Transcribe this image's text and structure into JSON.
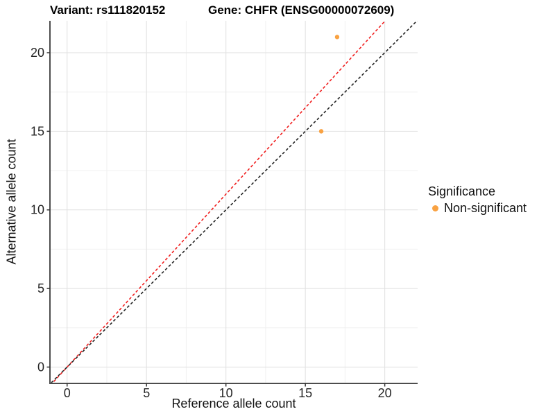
{
  "chart_data": {
    "type": "scatter",
    "titles": {
      "variant": "Variant: rs111820152",
      "gene": "Gene: CHFR (ENSG00000072609)"
    },
    "xlabel": "Reference allele count",
    "ylabel": "Alternative allele count",
    "xlim": [
      -1.08,
      22.07
    ],
    "ylim": [
      -1.04,
      22.03
    ],
    "xticks": [
      0,
      5,
      10,
      15,
      20
    ],
    "yticks": [
      0,
      5,
      10,
      15,
      20
    ],
    "minor_xticks": [
      2.5,
      7.5,
      12.5,
      17.5
    ],
    "minor_yticks": [
      2.5,
      7.5,
      12.5,
      17.5
    ],
    "grid": true,
    "points": [
      {
        "x": 17,
        "y": 21,
        "series": "Non-significant"
      },
      {
        "x": 16,
        "y": 15,
        "series": "Non-significant"
      }
    ],
    "point_color": "#F9A242",
    "lines": [
      {
        "name": "expected-ratio-line",
        "slope": 1.1,
        "intercept": 0,
        "color": "#F01E1E",
        "style": "dashed"
      },
      {
        "name": "identity-line",
        "slope": 1.0,
        "intercept": 0,
        "color": "#222222",
        "style": "dashed"
      }
    ],
    "legend": {
      "title": "Significance",
      "position": "right",
      "entries": [
        {
          "label": "Non-significant",
          "color": "#F9A242"
        }
      ]
    },
    "colors": {
      "major_grid": "#E2E2E2",
      "minor_grid": "#F0F0F0",
      "axis_line": "#4D4D4D",
      "tick_mark": "#333333",
      "tick_text": "#262626"
    }
  }
}
